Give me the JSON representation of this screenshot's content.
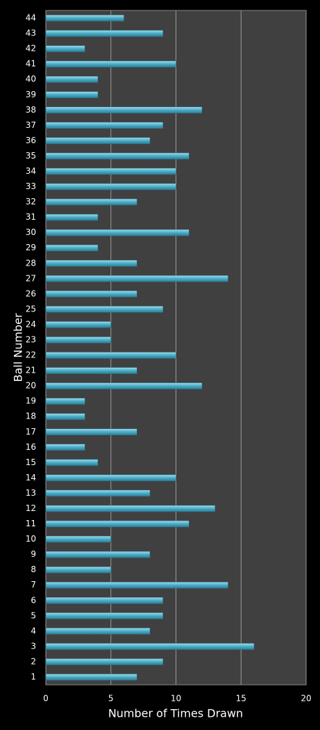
{
  "chart_data": {
    "type": "barh",
    "x_label": "Number of Times Drawn",
    "y_label": "Ball Number",
    "categories": [
      "1",
      "2",
      "3",
      "4",
      "5",
      "6",
      "7",
      "8",
      "9",
      "10",
      "11",
      "12",
      "13",
      "14",
      "15",
      "16",
      "17",
      "18",
      "19",
      "20",
      "21",
      "22",
      "23",
      "24",
      "25",
      "26",
      "27",
      "28",
      "29",
      "30",
      "31",
      "32",
      "33",
      "34",
      "35",
      "36",
      "37",
      "38",
      "39",
      "40",
      "41",
      "42",
      "43",
      "44"
    ],
    "values": [
      7,
      9,
      16,
      8,
      9,
      9,
      14,
      5,
      8,
      5,
      11,
      13,
      8,
      10,
      4,
      3,
      7,
      3,
      3,
      12,
      7,
      10,
      5,
      5,
      9,
      7,
      14,
      7,
      4,
      11,
      4,
      7,
      10,
      10,
      11,
      8,
      9,
      12,
      4,
      4,
      10,
      3,
      9,
      6
    ],
    "color": "#4bacc6",
    "xlim": [
      0,
      20
    ],
    "xticks": [
      0,
      5,
      10,
      15,
      20
    ],
    "grid": true
  }
}
